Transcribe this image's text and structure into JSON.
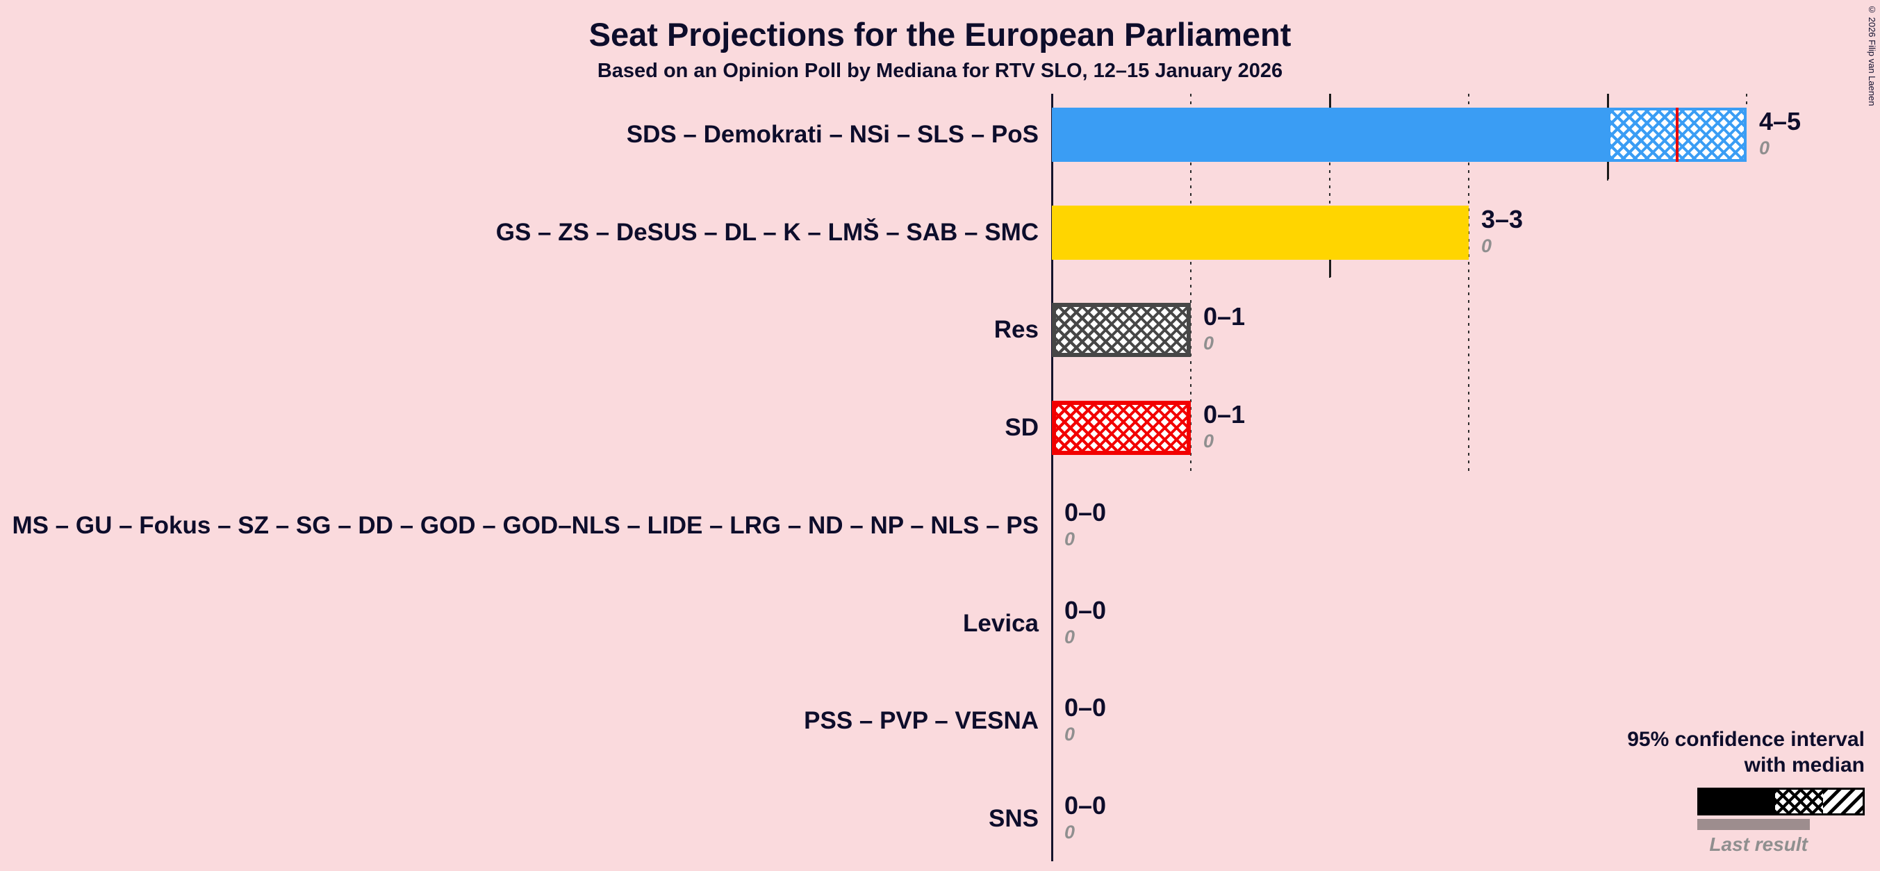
{
  "page": {
    "title": "Seat Projections for the European Parliament",
    "subtitle": "Based on an Opinion Poll by Mediana for RTV SLO, 12–15 January 2026",
    "copyright": "© 2026 Filip van Laenen"
  },
  "legend": {
    "ci_line1": "95% confidence interval",
    "ci_line2": "with median",
    "last_result": "Last result"
  },
  "colors": {
    "background": "#fadadd",
    "text": "#0d0d2b",
    "median_line": "#e80000",
    "last_result_text": "#8f8f8f",
    "legend_last_result_bar": "#9d8d8e"
  },
  "chart_data": {
    "type": "bar",
    "orientation": "horizontal",
    "title": "Seat Projections for the European Parliament",
    "subtitle": "Based on an Opinion Poll by Mediana for RTV SLO, 12–15 January 2026",
    "x_axis": {
      "min": 0,
      "max": 5,
      "unit": "seats",
      "gridline_style": "dotted",
      "gridlines_at": [
        1,
        2,
        3,
        4,
        5
      ]
    },
    "legend_position": "bottom-right",
    "bars": [
      {
        "party": "SDS – Demokrati – NSi – SLS – PoS",
        "ci_label": "4–5",
        "ci_low": 4,
        "ci_high": 5,
        "median": 4.5,
        "last_result": 0,
        "color": "#3a9df4"
      },
      {
        "party": "GS – ZS – DeSUS – DL – K – LMŠ – SAB – SMC",
        "ci_label": "3–3",
        "ci_low": 3,
        "ci_high": 3,
        "last_result": 0,
        "color": "#ffd500"
      },
      {
        "party": "Res",
        "ci_label": "0–1",
        "ci_low": 0,
        "ci_high": 1,
        "last_result": 0,
        "color": "#474747"
      },
      {
        "party": "SD",
        "ci_label": "0–1",
        "ci_low": 0,
        "ci_high": 1,
        "last_result": 0,
        "color": "#f20000"
      },
      {
        "party": "MS – GU – Fokus – SZ – SG – DD – GOD – GOD–NLS – LIDE – LRG – ND – NP – NLS – PS",
        "ci_label": "0–0",
        "ci_low": 0,
        "ci_high": 0,
        "last_result": 0,
        "color": "#888888"
      },
      {
        "party": "Levica",
        "ci_label": "0–0",
        "ci_low": 0,
        "ci_high": 0,
        "last_result": 0,
        "color": "#888888"
      },
      {
        "party": "PSS – PVP – VESNA",
        "ci_label": "0–0",
        "ci_low": 0,
        "ci_high": 0,
        "last_result": 0,
        "color": "#888888"
      },
      {
        "party": "SNS",
        "ci_label": "0–0",
        "ci_low": 0,
        "ci_high": 0,
        "last_result": 0,
        "color": "#888888"
      }
    ]
  }
}
